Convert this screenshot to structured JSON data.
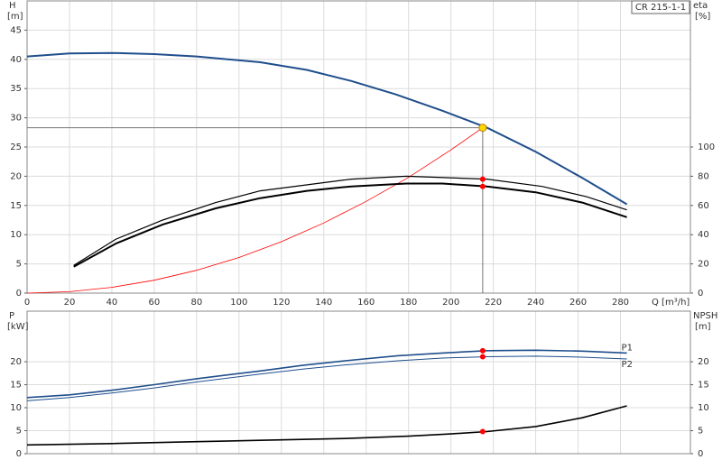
{
  "chart_data": [
    {
      "type": "line",
      "title": "CR 215-1-1",
      "x_label": "Q [m³/h]",
      "y_label": "H",
      "y_unit": "[m]",
      "y2_label": "eta",
      "y2_unit": "[%]",
      "xlim": [
        0,
        313
      ],
      "xticks": [
        0,
        20,
        40,
        60,
        80,
        100,
        120,
        140,
        160,
        180,
        200,
        220,
        240,
        260,
        280
      ],
      "xtick_labels": true,
      "ylim": [
        0,
        50
      ],
      "yticks": [
        0,
        5,
        10,
        15,
        20,
        25,
        30,
        35,
        40,
        45
      ],
      "y2lim": [
        0,
        200
      ],
      "y2ticks": [
        0,
        20,
        40,
        60,
        80,
        100
      ],
      "grid": true,
      "series": [
        {
          "color": "#1f4e8c",
          "line_width": 2,
          "axis": "y",
          "x": [
            0,
            20,
            40,
            60,
            80,
            110,
            132,
            153,
            174,
            196,
            217,
            240,
            262,
            283
          ],
          "values": [
            40.5,
            41,
            41.1,
            40.9,
            40.5,
            39.5,
            38.2,
            36.3,
            34,
            31.2,
            28.3,
            24.2,
            19.7,
            15.2
          ]
        },
        {
          "color": "#ff0000",
          "line_width": 0.8,
          "axis": "y",
          "x": [
            0,
            20,
            40,
            60,
            80,
            100,
            120,
            140,
            160,
            180,
            200,
            215
          ],
          "values": [
            0,
            0.24,
            0.98,
            2.2,
            3.9,
            6.1,
            8.8,
            12,
            15.7,
            19.8,
            24.5,
            28.3
          ]
        },
        {
          "color": "#000000",
          "line_width": 1.2,
          "axis": "y2",
          "x": [
            22,
            42,
            64,
            89,
            110,
            153,
            179,
            217,
            243,
            264,
            283
          ],
          "values": [
            19,
            37,
            50,
            62,
            70,
            78,
            80,
            78,
            73,
            66,
            57
          ]
        },
        {
          "color": "#000000",
          "line_width": 2,
          "axis": "y2",
          "x": [
            22,
            42,
            64,
            89,
            110,
            132,
            153,
            179,
            196,
            217,
            240,
            262,
            283
          ],
          "values": [
            18,
            34,
            47,
            58,
            65,
            70,
            73,
            75,
            75,
            73,
            69,
            62,
            52
          ]
        }
      ],
      "duty_point": {
        "x": 215,
        "y": 28.3,
        "color": "#ffd700"
      },
      "markers": [
        {
          "x": 215,
          "y": 78,
          "axis": "y2"
        },
        {
          "x": 215,
          "y": 73,
          "axis": "y2"
        }
      ],
      "marker_color": "#ff0000"
    },
    {
      "type": "line",
      "y_label": "P",
      "y_unit": "[kW]",
      "y2_label": "NPSH",
      "y2_unit": "[m]",
      "xlim": [
        0,
        313
      ],
      "xticks": [
        0,
        20,
        40,
        60,
        80,
        100,
        120,
        140,
        160,
        180,
        200,
        220,
        240,
        260,
        280
      ],
      "xtick_labels": false,
      "ylim": [
        0,
        31
      ],
      "yticks": [
        0,
        5,
        10,
        15,
        20
      ],
      "y2lim": [
        0,
        31
      ],
      "y2ticks": [
        0,
        5,
        10,
        15,
        20
      ],
      "grid": true,
      "series": [
        {
          "name": "P1",
          "color": "#1f4e8c",
          "line_width": 1.6,
          "axis": "y",
          "x": [
            0,
            20,
            40,
            60,
            80,
            110,
            130,
            150,
            175,
            196,
            217,
            240,
            262,
            283
          ],
          "values": [
            12.2,
            12.8,
            13.8,
            15,
            16.3,
            18,
            19.2,
            20.2,
            21.3,
            21.9,
            22.4,
            22.5,
            22.3,
            21.9
          ]
        },
        {
          "name": "P2",
          "color": "#1f4e8c",
          "line_width": 1,
          "axis": "y",
          "x": [
            0,
            20,
            40,
            60,
            80,
            110,
            130,
            150,
            175,
            196,
            217,
            240,
            262,
            283
          ],
          "values": [
            11.5,
            12.2,
            13.2,
            14.3,
            15.6,
            17.3,
            18.4,
            19.3,
            20.2,
            20.8,
            21.1,
            21.2,
            21,
            20.6
          ]
        },
        {
          "color": "#000000",
          "line_width": 1.6,
          "axis": "y2",
          "x": [
            0,
            40,
            80,
            110,
            150,
            180,
            200,
            217,
            240,
            262,
            283
          ],
          "values": [
            1.9,
            2.2,
            2.6,
            2.9,
            3.3,
            3.8,
            4.3,
            4.8,
            5.9,
            7.8,
            10.4
          ]
        }
      ],
      "markers": [
        {
          "x": 215,
          "y": 22.4,
          "axis": "y"
        },
        {
          "x": 215,
          "y": 21.1,
          "axis": "y"
        },
        {
          "x": 215,
          "y": 4.8,
          "axis": "y2"
        }
      ],
      "marker_color": "#ff0000"
    }
  ]
}
